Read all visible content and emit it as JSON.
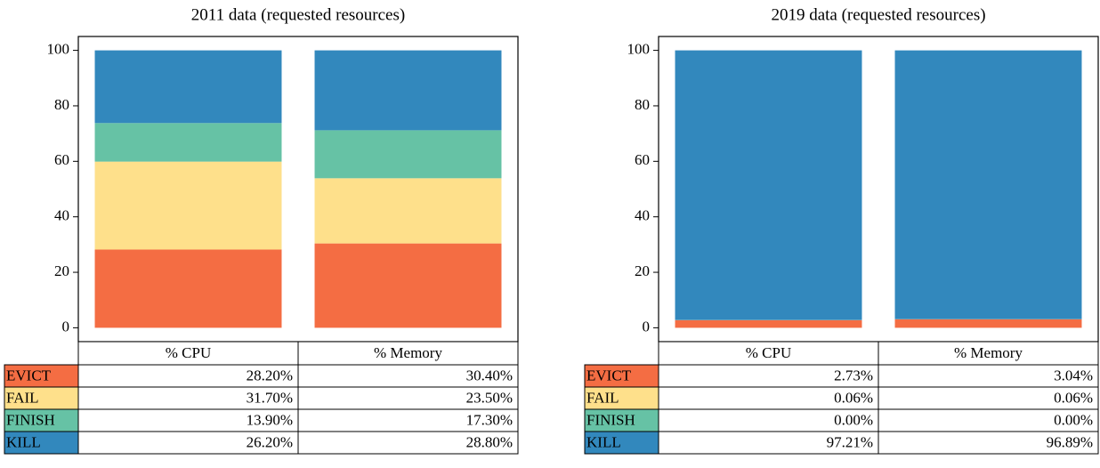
{
  "chart_data": [
    {
      "type": "bar",
      "stacked": true,
      "title": "2011 data (requested resources)",
      "categories": [
        "% CPU",
        "% Memory"
      ],
      "ylim": [
        -5,
        105
      ],
      "yticks": [
        0,
        20,
        40,
        60,
        80,
        100
      ],
      "series": [
        {
          "name": "EVICT",
          "color": "#f46d43",
          "values": [
            28.2,
            30.4
          ],
          "value_labels": [
            "28.20%",
            "30.40%"
          ]
        },
        {
          "name": "FAIL",
          "color": "#fee08b",
          "values": [
            31.7,
            23.5
          ],
          "value_labels": [
            "31.70%",
            "23.50%"
          ]
        },
        {
          "name": "FINISH",
          "color": "#66c2a5",
          "values": [
            13.9,
            17.3
          ],
          "value_labels": [
            "13.90%",
            "17.30%"
          ]
        },
        {
          "name": "KILL",
          "color": "#3288bd",
          "values": [
            26.2,
            28.8
          ],
          "value_labels": [
            "26.20%",
            "28.80%"
          ]
        }
      ]
    },
    {
      "type": "bar",
      "stacked": true,
      "title": "2019 data (requested resources)",
      "categories": [
        "% CPU",
        "% Memory"
      ],
      "ylim": [
        -5,
        105
      ],
      "yticks": [
        0,
        20,
        40,
        60,
        80,
        100
      ],
      "series": [
        {
          "name": "EVICT",
          "color": "#f46d43",
          "values": [
            2.73,
            3.04
          ],
          "value_labels": [
            "2.73%",
            "3.04%"
          ]
        },
        {
          "name": "FAIL",
          "color": "#fee08b",
          "values": [
            0.06,
            0.06
          ],
          "value_labels": [
            "0.06%",
            "0.06%"
          ]
        },
        {
          "name": "FINISH",
          "color": "#66c2a5",
          "values": [
            0.0,
            0.0
          ],
          "value_labels": [
            "0.00%",
            "0.00%"
          ]
        },
        {
          "name": "KILL",
          "color": "#3288bd",
          "values": [
            97.21,
            96.89
          ],
          "value_labels": [
            "97.21%",
            "96.89%"
          ]
        }
      ]
    }
  ]
}
